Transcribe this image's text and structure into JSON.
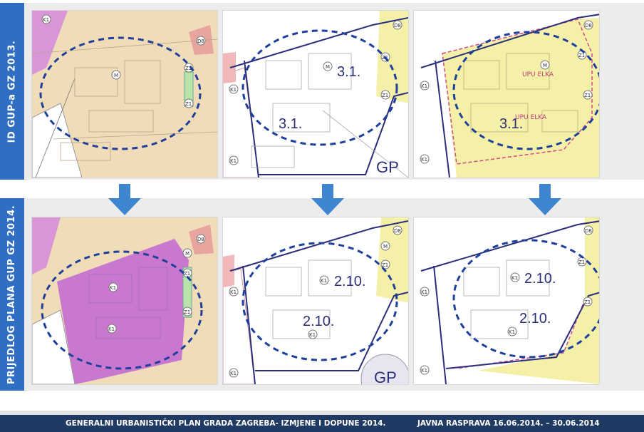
{
  "rows": [
    {
      "label": "ID GUP-a GZ 2013.",
      "panels": [
        {
          "zone_labels": [
            "M",
            "K1",
            "D8",
            "Z1",
            "Z1"
          ],
          "plan_labels": []
        },
        {
          "zone_labels": [
            "M",
            "D8",
            "Z1",
            "Z1",
            "K1",
            "K1"
          ],
          "plan_labels": [
            "3.1.",
            "3.1.",
            "GP"
          ]
        },
        {
          "zone_labels": [
            "M",
            "D8",
            "Z1",
            "Z1",
            "K1",
            "K1"
          ],
          "plan_labels": [
            "3.1."
          ],
          "upu_labels": [
            "UPU ELKA",
            "UPU ELKA"
          ]
        }
      ]
    },
    {
      "label": "PRIJEDLOG PLANA GUP GZ 2014.",
      "panels": [
        {
          "zone_labels": [
            "K1",
            "K1",
            "D8",
            "M",
            "Z1",
            "Z1"
          ],
          "plan_labels": []
        },
        {
          "zone_labels": [
            "D8",
            "M",
            "Z1",
            "K1",
            "K1",
            "K1",
            "K1"
          ],
          "plan_labels": [
            "2.10.",
            "2.10.",
            "GP"
          ]
        },
        {
          "zone_labels": [
            "D8",
            "Z1",
            "Z1",
            "K1",
            "K1",
            "K1",
            "K1"
          ],
          "plan_labels": [
            "2.10.",
            "2.10."
          ]
        }
      ]
    }
  ],
  "footer": {
    "left": "GENERALNI URBANISTIČKI PLAN GRADA ZAGREBA- IZMJENE I DOPUNE 2014.",
    "right": "JAVNA RASPRAVA  16.06.2014. – 30.06.2014"
  },
  "colors": {
    "label_bar": "#2f6ec3",
    "arrow": "#3f86d0",
    "ellipse": "#1e3f9a",
    "footer": "#1f3b63",
    "zone_beige": "#f0dcb8",
    "zone_magenta": "#d896d8",
    "zone_yellow": "#f5f0a8",
    "zone_green": "#b9e3a8",
    "boundary": "#2b2f7a"
  }
}
